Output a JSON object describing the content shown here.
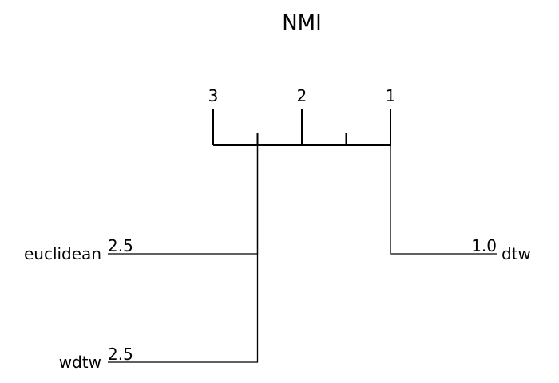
{
  "chart_data": {
    "type": "critical-difference",
    "title": "NMI",
    "axis": {
      "min_rank": 1,
      "max_rank": 3,
      "reversed": true,
      "tick_labels": [
        "1",
        "2",
        "3"
      ],
      "tick_values": [
        1,
        2,
        3
      ],
      "minor_tick_values": [
        1.5,
        2.5
      ]
    },
    "methods": [
      {
        "name": "dtw",
        "avg_rank": 1.0,
        "rank_label": "1.0",
        "side": "right"
      },
      {
        "name": "euclidean",
        "avg_rank": 2.5,
        "rank_label": "2.5",
        "side": "left"
      },
      {
        "name": "wdtw",
        "avg_rank": 2.5,
        "rank_label": "2.5",
        "side": "left"
      }
    ]
  }
}
